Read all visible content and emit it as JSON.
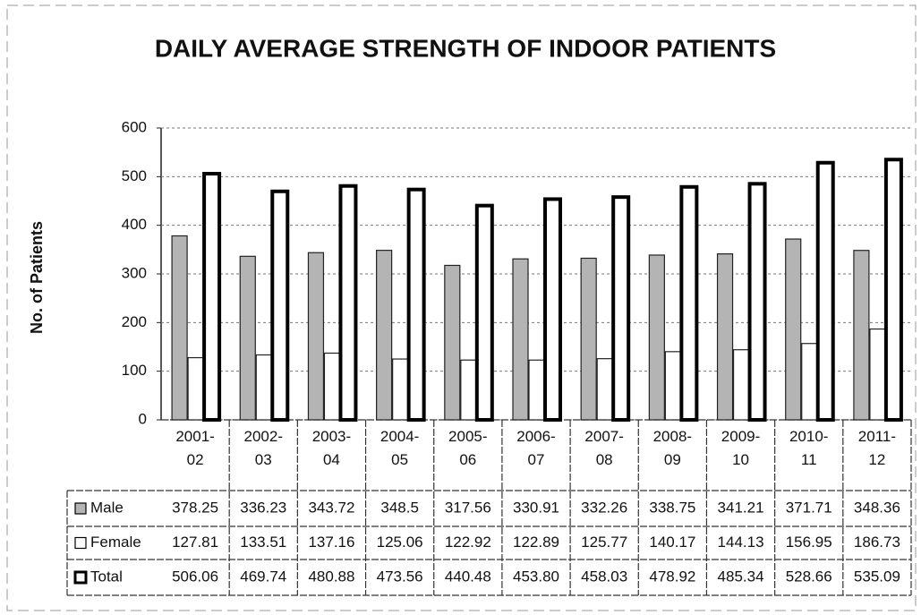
{
  "chart_data": {
    "type": "bar",
    "title": "DAILY AVERAGE STRENGTH OF INDOOR PATIENTS",
    "y_label": "No. of Patients",
    "categories": [
      "2001-02",
      "2002-03",
      "2003-04",
      "2004-05",
      "2005-06",
      "2006-07",
      "2007-08",
      "2008-09",
      "2009-10",
      "2010-11",
      "2011-12"
    ],
    "series": [
      {
        "name": "Male",
        "color": "#b4b4b4",
        "values": [
          378.25,
          336.23,
          343.72,
          348.5,
          317.56,
          330.91,
          332.26,
          338.75,
          341.21,
          371.71,
          348.36
        ],
        "value_labels": [
          "378.25",
          "336.23",
          "343.72",
          "348.5",
          "317.56",
          "330.91",
          "332.26",
          "338.75",
          "341.21",
          "371.71",
          "348.36"
        ]
      },
      {
        "name": "Female",
        "color": "#ffffff",
        "values": [
          127.81,
          133.51,
          137.16,
          125.06,
          122.92,
          122.89,
          125.77,
          140.17,
          144.13,
          156.95,
          186.73
        ],
        "value_labels": [
          "127.81",
          "133.51",
          "137.16",
          "125.06",
          "122.92",
          "122.89",
          "125.77",
          "140.17",
          "144.13",
          "156.95",
          "186.73"
        ]
      },
      {
        "name": "Total",
        "color": "#000000",
        "values": [
          506.06,
          469.74,
          480.88,
          473.56,
          440.48,
          453.8,
          458.03,
          478.92,
          485.34,
          528.66,
          535.09
        ],
        "value_labels": [
          "506.06",
          "469.74",
          "480.88",
          "473.56",
          "440.48",
          "453.80",
          "458.03",
          "478.92",
          "485.34",
          "528.66",
          "535.09"
        ]
      }
    ],
    "ylim": [
      0,
      600
    ],
    "yticks": [
      0,
      100,
      200,
      300,
      400,
      500,
      600
    ],
    "grid": true,
    "legend": "table"
  }
}
